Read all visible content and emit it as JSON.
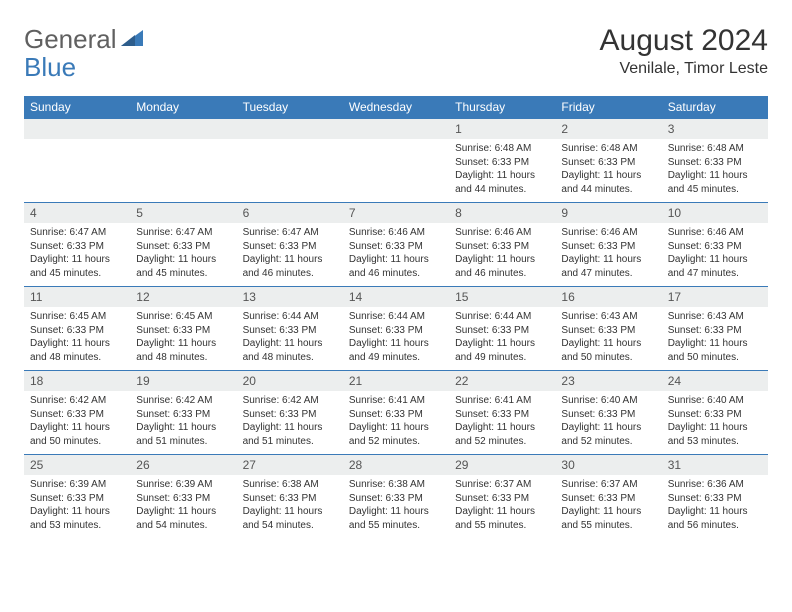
{
  "brand": {
    "part1": "General",
    "part2": "Blue"
  },
  "colors": {
    "accent": "#3a7ab8",
    "daynum_bg": "#eceeee",
    "text": "#333333"
  },
  "title": "August 2024",
  "subtitle": "Venilale, Timor Leste",
  "weekdays": [
    "Sunday",
    "Monday",
    "Tuesday",
    "Wednesday",
    "Thursday",
    "Friday",
    "Saturday"
  ],
  "days": {
    "1": {
      "sunrise": "6:48 AM",
      "sunset": "6:33 PM",
      "daylight": "11 hours and 44 minutes."
    },
    "2": {
      "sunrise": "6:48 AM",
      "sunset": "6:33 PM",
      "daylight": "11 hours and 44 minutes."
    },
    "3": {
      "sunrise": "6:48 AM",
      "sunset": "6:33 PM",
      "daylight": "11 hours and 45 minutes."
    },
    "4": {
      "sunrise": "6:47 AM",
      "sunset": "6:33 PM",
      "daylight": "11 hours and 45 minutes."
    },
    "5": {
      "sunrise": "6:47 AM",
      "sunset": "6:33 PM",
      "daylight": "11 hours and 45 minutes."
    },
    "6": {
      "sunrise": "6:47 AM",
      "sunset": "6:33 PM",
      "daylight": "11 hours and 46 minutes."
    },
    "7": {
      "sunrise": "6:46 AM",
      "sunset": "6:33 PM",
      "daylight": "11 hours and 46 minutes."
    },
    "8": {
      "sunrise": "6:46 AM",
      "sunset": "6:33 PM",
      "daylight": "11 hours and 46 minutes."
    },
    "9": {
      "sunrise": "6:46 AM",
      "sunset": "6:33 PM",
      "daylight": "11 hours and 47 minutes."
    },
    "10": {
      "sunrise": "6:46 AM",
      "sunset": "6:33 PM",
      "daylight": "11 hours and 47 minutes."
    },
    "11": {
      "sunrise": "6:45 AM",
      "sunset": "6:33 PM",
      "daylight": "11 hours and 48 minutes."
    },
    "12": {
      "sunrise": "6:45 AM",
      "sunset": "6:33 PM",
      "daylight": "11 hours and 48 minutes."
    },
    "13": {
      "sunrise": "6:44 AM",
      "sunset": "6:33 PM",
      "daylight": "11 hours and 48 minutes."
    },
    "14": {
      "sunrise": "6:44 AM",
      "sunset": "6:33 PM",
      "daylight": "11 hours and 49 minutes."
    },
    "15": {
      "sunrise": "6:44 AM",
      "sunset": "6:33 PM",
      "daylight": "11 hours and 49 minutes."
    },
    "16": {
      "sunrise": "6:43 AM",
      "sunset": "6:33 PM",
      "daylight": "11 hours and 50 minutes."
    },
    "17": {
      "sunrise": "6:43 AM",
      "sunset": "6:33 PM",
      "daylight": "11 hours and 50 minutes."
    },
    "18": {
      "sunrise": "6:42 AM",
      "sunset": "6:33 PM",
      "daylight": "11 hours and 50 minutes."
    },
    "19": {
      "sunrise": "6:42 AM",
      "sunset": "6:33 PM",
      "daylight": "11 hours and 51 minutes."
    },
    "20": {
      "sunrise": "6:42 AM",
      "sunset": "6:33 PM",
      "daylight": "11 hours and 51 minutes."
    },
    "21": {
      "sunrise": "6:41 AM",
      "sunset": "6:33 PM",
      "daylight": "11 hours and 52 minutes."
    },
    "22": {
      "sunrise": "6:41 AM",
      "sunset": "6:33 PM",
      "daylight": "11 hours and 52 minutes."
    },
    "23": {
      "sunrise": "6:40 AM",
      "sunset": "6:33 PM",
      "daylight": "11 hours and 52 minutes."
    },
    "24": {
      "sunrise": "6:40 AM",
      "sunset": "6:33 PM",
      "daylight": "11 hours and 53 minutes."
    },
    "25": {
      "sunrise": "6:39 AM",
      "sunset": "6:33 PM",
      "daylight": "11 hours and 53 minutes."
    },
    "26": {
      "sunrise": "6:39 AM",
      "sunset": "6:33 PM",
      "daylight": "11 hours and 54 minutes."
    },
    "27": {
      "sunrise": "6:38 AM",
      "sunset": "6:33 PM",
      "daylight": "11 hours and 54 minutes."
    },
    "28": {
      "sunrise": "6:38 AM",
      "sunset": "6:33 PM",
      "daylight": "11 hours and 55 minutes."
    },
    "29": {
      "sunrise": "6:37 AM",
      "sunset": "6:33 PM",
      "daylight": "11 hours and 55 minutes."
    },
    "30": {
      "sunrise": "6:37 AM",
      "sunset": "6:33 PM",
      "daylight": "11 hours and 55 minutes."
    },
    "31": {
      "sunrise": "6:36 AM",
      "sunset": "6:33 PM",
      "daylight": "11 hours and 56 minutes."
    }
  },
  "labels": {
    "sunrise": "Sunrise:",
    "sunset": "Sunset:",
    "daylight": "Daylight:"
  },
  "layout": [
    [
      null,
      null,
      null,
      null,
      1,
      2,
      3
    ],
    [
      4,
      5,
      6,
      7,
      8,
      9,
      10
    ],
    [
      11,
      12,
      13,
      14,
      15,
      16,
      17
    ],
    [
      18,
      19,
      20,
      21,
      22,
      23,
      24
    ],
    [
      25,
      26,
      27,
      28,
      29,
      30,
      31
    ]
  ]
}
